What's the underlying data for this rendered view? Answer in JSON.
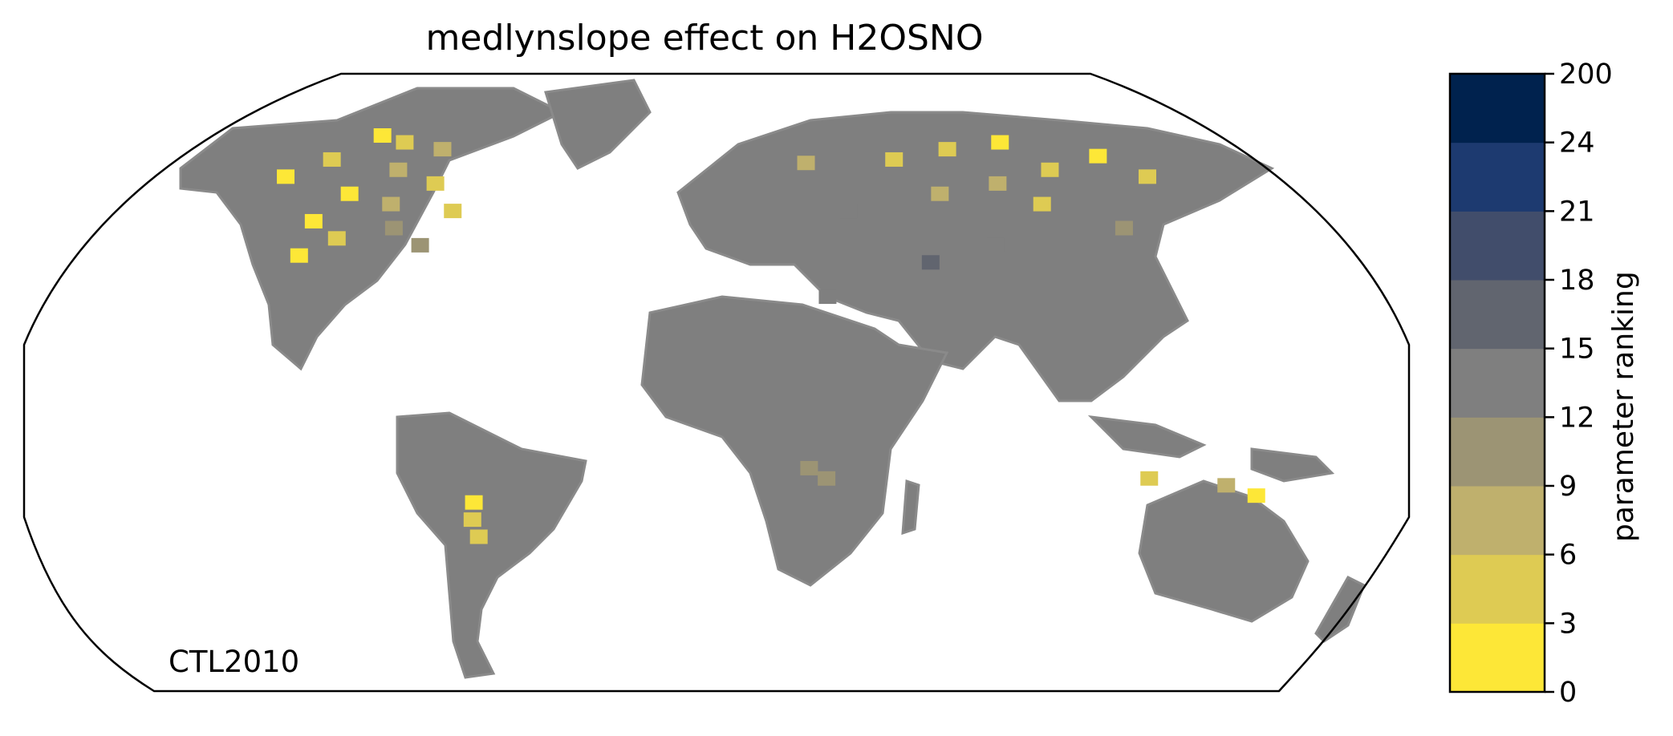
{
  "title": "medlynslope effect on H2OSNO",
  "run_label": "CTL2010",
  "colorbar": {
    "label": "parameter ranking",
    "tick_labels": [
      "0",
      "3",
      "6",
      "9",
      "12",
      "15",
      "18",
      "21",
      "24",
      "200"
    ],
    "colors": [
      "#fde737",
      "#decb53",
      "#bfb06d",
      "#9c9474",
      "#7f7f7f",
      "#61656f",
      "#414d6b",
      "#1d3a70",
      "#00224e"
    ]
  },
  "map": {
    "projection": "Robinson",
    "land_fill": "#7f7f7f",
    "coastline_color": "#8a8a8a",
    "cells": [
      {
        "lat": 72,
        "lon": -120,
        "rank": 2
      },
      {
        "lat": 70,
        "lon": -110,
        "rank": 4
      },
      {
        "lat": 68,
        "lon": -95,
        "rank": 6
      },
      {
        "lat": 65,
        "lon": -130,
        "rank": 3
      },
      {
        "lat": 62,
        "lon": -105,
        "rank": 7
      },
      {
        "lat": 60,
        "lon": -140,
        "rank": 2
      },
      {
        "lat": 58,
        "lon": -90,
        "rank": 5
      },
      {
        "lat": 55,
        "lon": -115,
        "rank": 1
      },
      {
        "lat": 52,
        "lon": -100,
        "rank": 8
      },
      {
        "lat": 50,
        "lon": -80,
        "rank": 3
      },
      {
        "lat": 47,
        "lon": -120,
        "rank": 2
      },
      {
        "lat": 45,
        "lon": -95,
        "rank": 9
      },
      {
        "lat": 42,
        "lon": -110,
        "rank": 5
      },
      {
        "lat": 40,
        "lon": -85,
        "rank": 10
      },
      {
        "lat": 37,
        "lon": -118,
        "rank": 1
      },
      {
        "lat": 65,
        "lon": 60,
        "rank": 3
      },
      {
        "lat": 68,
        "lon": 80,
        "rank": 5
      },
      {
        "lat": 70,
        "lon": 100,
        "rank": 2
      },
      {
        "lat": 62,
        "lon": 110,
        "rank": 4
      },
      {
        "lat": 66,
        "lon": 130,
        "rank": 1
      },
      {
        "lat": 58,
        "lon": 90,
        "rank": 6
      },
      {
        "lat": 55,
        "lon": 70,
        "rank": 7
      },
      {
        "lat": 52,
        "lon": 100,
        "rank": 3
      },
      {
        "lat": 60,
        "lon": 140,
        "rank": 5
      },
      {
        "lat": 64,
        "lon": 30,
        "rank": 8
      },
      {
        "lat": 50,
        "lon": 40,
        "rank": 12
      },
      {
        "lat": 45,
        "lon": 120,
        "rank": 10
      },
      {
        "lat": 40,
        "lon": 80,
        "rank": 14
      },
      {
        "lat": 35,
        "lon": 60,
        "rank": 16
      },
      {
        "lat": 25,
        "lon": 30,
        "rank": 13
      },
      {
        "lat": -35,
        "lon": -68,
        "rank": 2
      },
      {
        "lat": -40,
        "lon": -70,
        "rank": 5
      },
      {
        "lat": -45,
        "lon": -70,
        "rank": 3
      },
      {
        "lat": -30,
        "lon": 140,
        "rank": 6
      },
      {
        "lat": -33,
        "lon": 150,
        "rank": 1
      },
      {
        "lat": -28,
        "lon": 118,
        "rank": 4
      },
      {
        "lat": -25,
        "lon": 25,
        "rank": 11
      },
      {
        "lat": -28,
        "lon": 30,
        "rank": 9
      }
    ]
  }
}
